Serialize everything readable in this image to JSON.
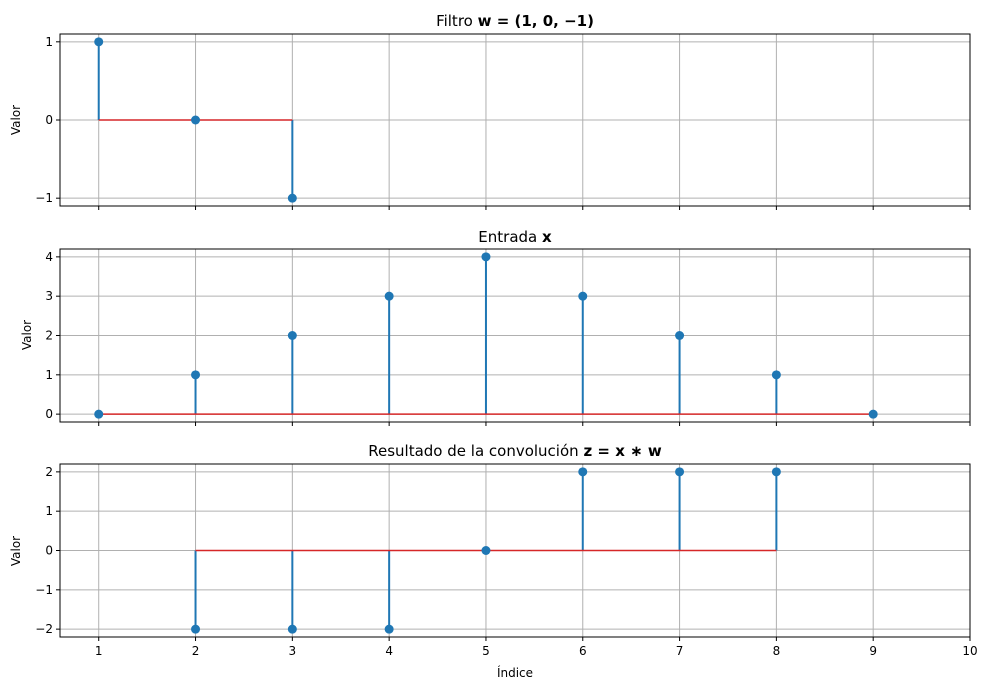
{
  "figure": {
    "xlabel": "Índice",
    "ylabel": "Valor",
    "x_ticks": [
      "1",
      "2",
      "3",
      "4",
      "5",
      "6",
      "7",
      "8",
      "9",
      "10"
    ]
  },
  "chart_data": [
    {
      "type": "stem",
      "title_prefix": "Filtro",
      "title_math": "w = (1, 0, −1)",
      "x": [
        1,
        2,
        3
      ],
      "values": [
        1,
        0,
        -1
      ],
      "baseline": 0,
      "ylim": [
        -1.1,
        1.1
      ],
      "yticks": [
        -1,
        0,
        1
      ],
      "ytick_labels": [
        "−1",
        "0",
        "1"
      ],
      "xlim": [
        0.6,
        10.0
      ],
      "grid": true,
      "xlabel": "",
      "ylabel": "Valor",
      "marker_color": "#1f77b4",
      "baseline_color": "#d62728"
    },
    {
      "type": "stem",
      "title_prefix": "Entrada",
      "title_math": "x",
      "x": [
        1,
        2,
        3,
        4,
        5,
        6,
        7,
        8,
        9
      ],
      "values": [
        0,
        1,
        2,
        3,
        4,
        3,
        2,
        1,
        0
      ],
      "baseline": 0,
      "ylim": [
        -0.2,
        4.2
      ],
      "yticks": [
        0,
        1,
        2,
        3,
        4
      ],
      "ytick_labels": [
        "0",
        "1",
        "2",
        "3",
        "4"
      ],
      "xlim": [
        0.6,
        10.0
      ],
      "grid": true,
      "xlabel": "",
      "ylabel": "Valor",
      "marker_color": "#1f77b4",
      "baseline_color": "#d62728"
    },
    {
      "type": "stem",
      "title_prefix": "Resultado de la convolución",
      "title_math": "z = x ∗ w",
      "x": [
        2,
        3,
        4,
        5,
        6,
        7,
        8
      ],
      "values": [
        -2,
        -2,
        -2,
        0,
        2,
        2,
        2
      ],
      "baseline": 0,
      "ylim": [
        -2.2,
        2.2
      ],
      "yticks": [
        -2,
        -1,
        0,
        1,
        2
      ],
      "ytick_labels": [
        "−2",
        "−1",
        "0",
        "1",
        "2"
      ],
      "xlim": [
        0.6,
        10.0
      ],
      "grid": true,
      "xlabel": "Índice",
      "ylabel": "Valor",
      "marker_color": "#1f77b4",
      "baseline_color": "#d62728"
    }
  ]
}
